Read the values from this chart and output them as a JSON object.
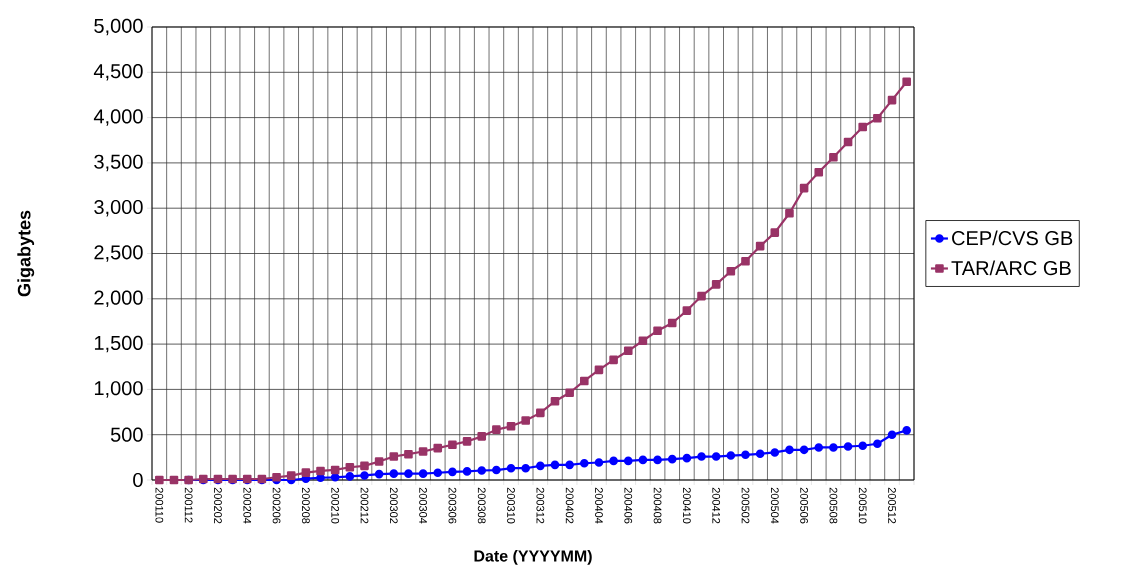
{
  "chart_data": {
    "type": "line",
    "xlabel": "Date (YYYYMM)",
    "ylabel": "Gigabytes",
    "categories": [
      "200110",
      null,
      "200112",
      null,
      "200202",
      null,
      "200204",
      null,
      "200206",
      null,
      "200208",
      null,
      "200210",
      null,
      "200212",
      null,
      "200302",
      null,
      "200304",
      null,
      "200306",
      null,
      "200308",
      null,
      "200310",
      null,
      "200312",
      null,
      "200402",
      null,
      "200404",
      null,
      "200406",
      null,
      "200408",
      null,
      "200410",
      null,
      "200412",
      null,
      "200502",
      null,
      "200504",
      null,
      "200506",
      null,
      "200508",
      null,
      "200510",
      null,
      "200512",
      null
    ],
    "series": [
      {
        "name": "CEP/CVS GB",
        "color": "#0000ff",
        "marker": "circle",
        "values": [
          null,
          null,
          0,
          0,
          0,
          0,
          0,
          0,
          0,
          0,
          15,
          25,
          30,
          40,
          50,
          65,
          70,
          70,
          70,
          80,
          90,
          95,
          105,
          110,
          130,
          130,
          156,
          167,
          167,
          185,
          193,
          211,
          211,
          222,
          222,
          230,
          241,
          259,
          259,
          270,
          278,
          289,
          304,
          333,
          333,
          359,
          359,
          370,
          378,
          400,
          500,
          548
        ]
      },
      {
        "name": "TAR/ARC GB",
        "color": "#993366",
        "marker": "square",
        "values": [
          0,
          0,
          0,
          11,
          11,
          11,
          11,
          11,
          30,
          48,
          81,
          100,
          111,
          141,
          156,
          204,
          259,
          285,
          315,
          352,
          389,
          426,
          481,
          556,
          593,
          656,
          741,
          870,
          963,
          1093,
          1215,
          1326,
          1426,
          1537,
          1648,
          1733,
          1870,
          2030,
          2159,
          2304,
          2415,
          2581,
          2730,
          2944,
          3222,
          3396,
          3563,
          3730,
          3896,
          3993,
          4193,
          4396
        ]
      }
    ],
    "ylim": [
      0,
      5000
    ],
    "yticks": [
      0,
      500,
      {
        "value": 1000,
        "label": "1,000"
      },
      {
        "value": 1500,
        "label": "1,500"
      },
      {
        "value": 2000,
        "label": "2,000"
      },
      {
        "value": 2500,
        "label": "2,500"
      },
      {
        "value": 3000,
        "label": "3,000"
      },
      {
        "value": 3500,
        "label": "3,500"
      },
      {
        "value": 4000,
        "label": "4,000"
      },
      {
        "value": 4500,
        "label": "4,500"
      },
      {
        "value": 5000,
        "label": "5,000"
      }
    ],
    "grid": true,
    "legend": "right",
    "line_style": "solid"
  }
}
